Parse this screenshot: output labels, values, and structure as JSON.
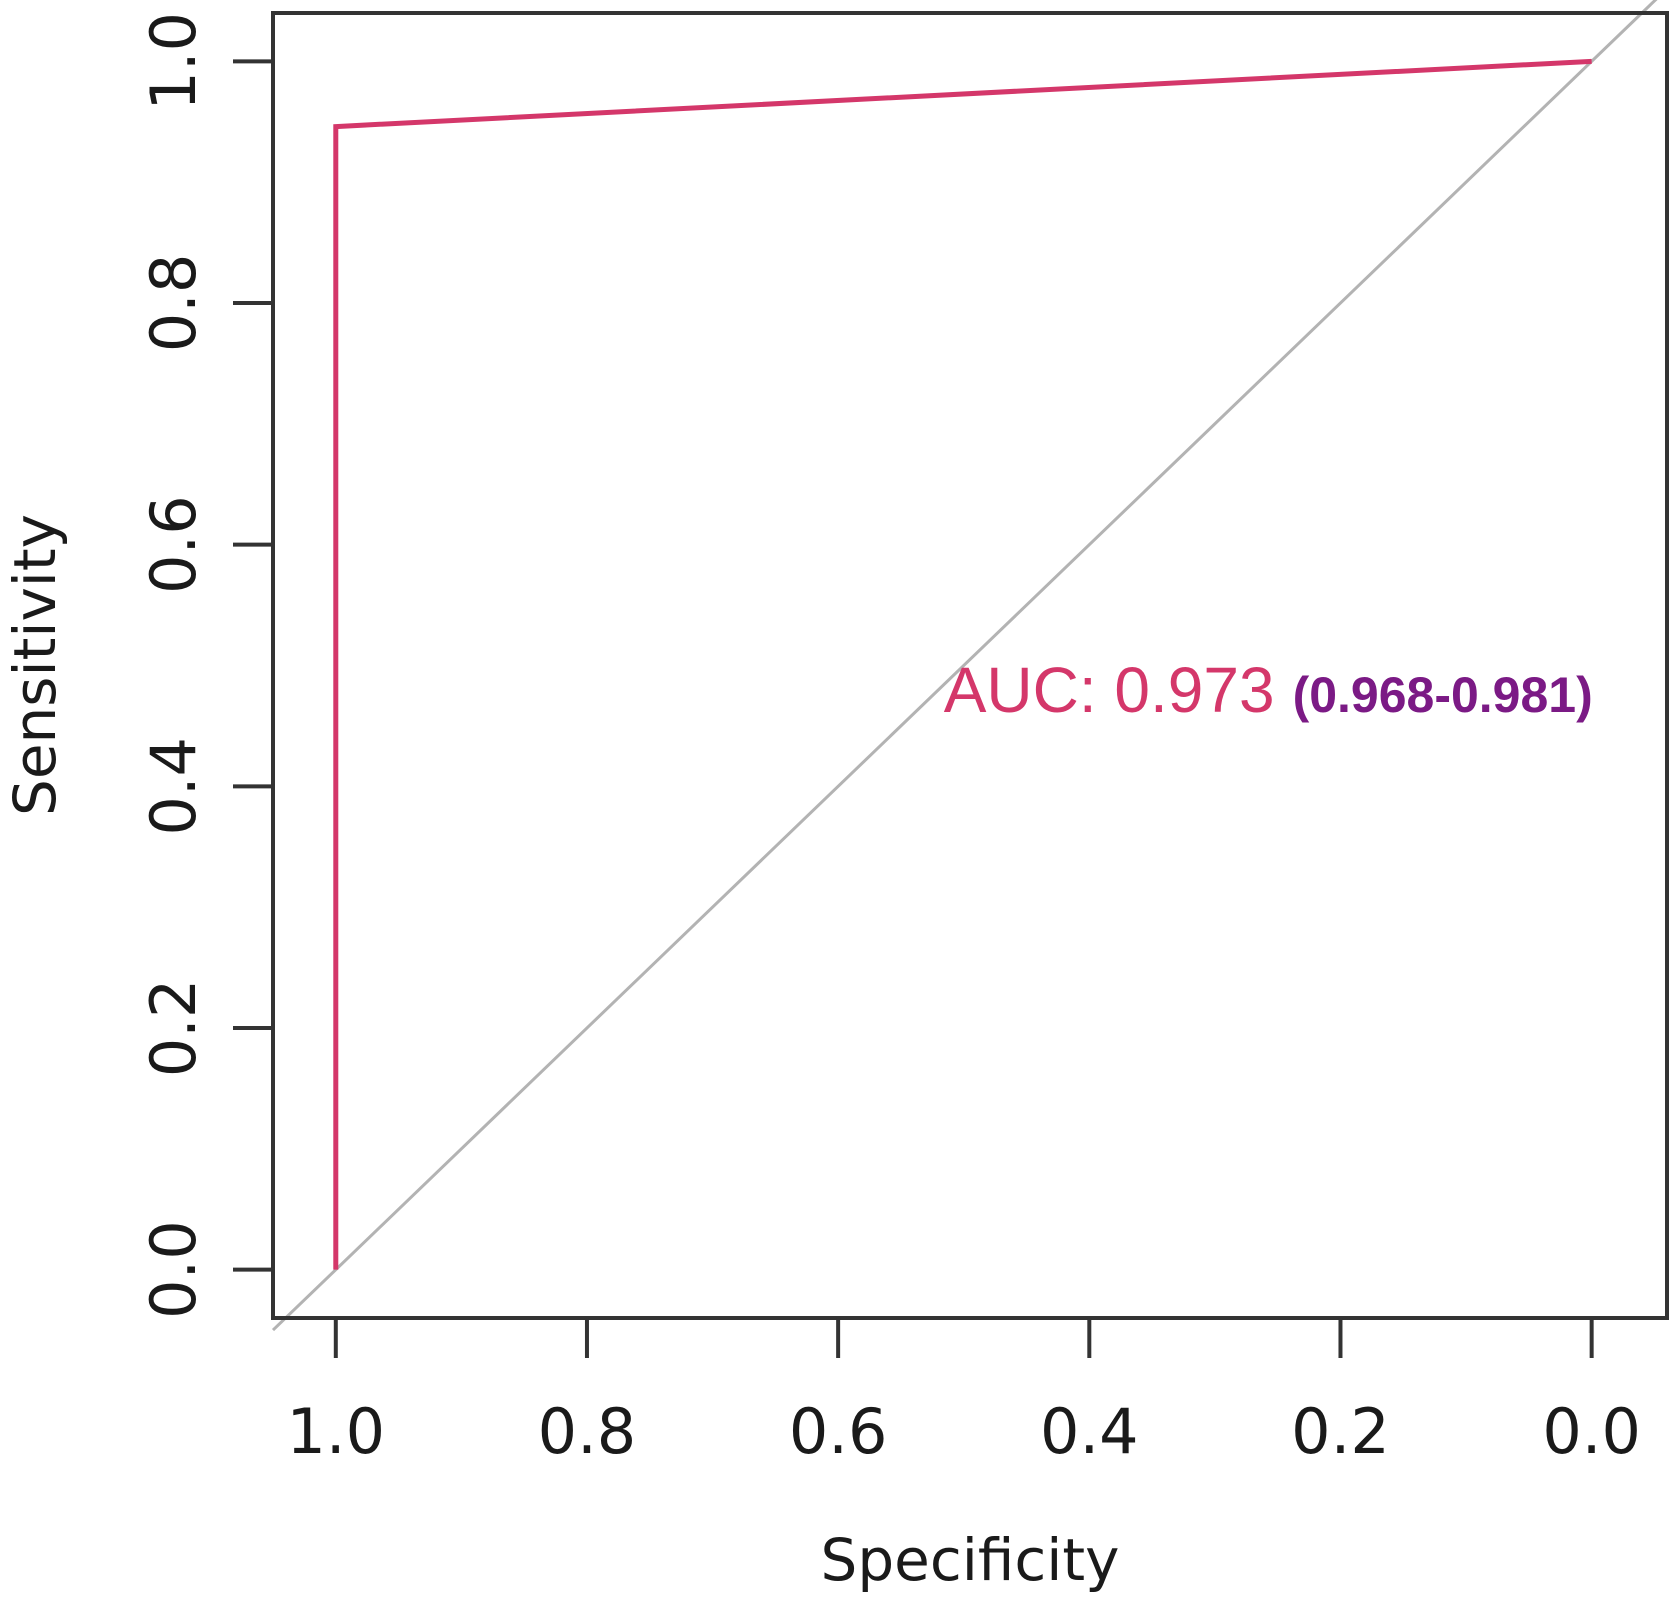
{
  "chart_data": {
    "type": "line",
    "xlabel": "Specificity",
    "ylabel": "Sensitivity",
    "xlim": [
      1.05,
      -0.06
    ],
    "ylim": [
      -0.04,
      1.04
    ],
    "x_reversed": true,
    "grid": false,
    "xticks": [
      1.0,
      0.8,
      0.6,
      0.4,
      0.2,
      0.0
    ],
    "xtick_labels": [
      "1.0",
      "0.8",
      "0.6",
      "0.4",
      "0.2",
      "0.0"
    ],
    "yticks": [
      0.0,
      0.2,
      0.4,
      0.6,
      0.8,
      1.0
    ],
    "ytick_labels": [
      "0.0",
      "0.2",
      "0.4",
      "0.6",
      "0.8",
      "1.0"
    ],
    "series": [
      {
        "x": [
          1.0,
          1.0,
          0.0
        ],
        "y": [
          0.0,
          0.946,
          1.0
        ],
        "color": "#d4376a"
      }
    ],
    "reference_line": {
      "x": [
        1.0,
        0.0
      ],
      "y": [
        0.0,
        1.0
      ],
      "color": "#b3b3b3"
    },
    "annotation": {
      "text": "AUC: 0.973",
      "ci_text": "(0.968-0.981)",
      "x": 0.5,
      "y": 0.47,
      "color": "#d4376a",
      "ci_color": "#7b1a85"
    }
  }
}
